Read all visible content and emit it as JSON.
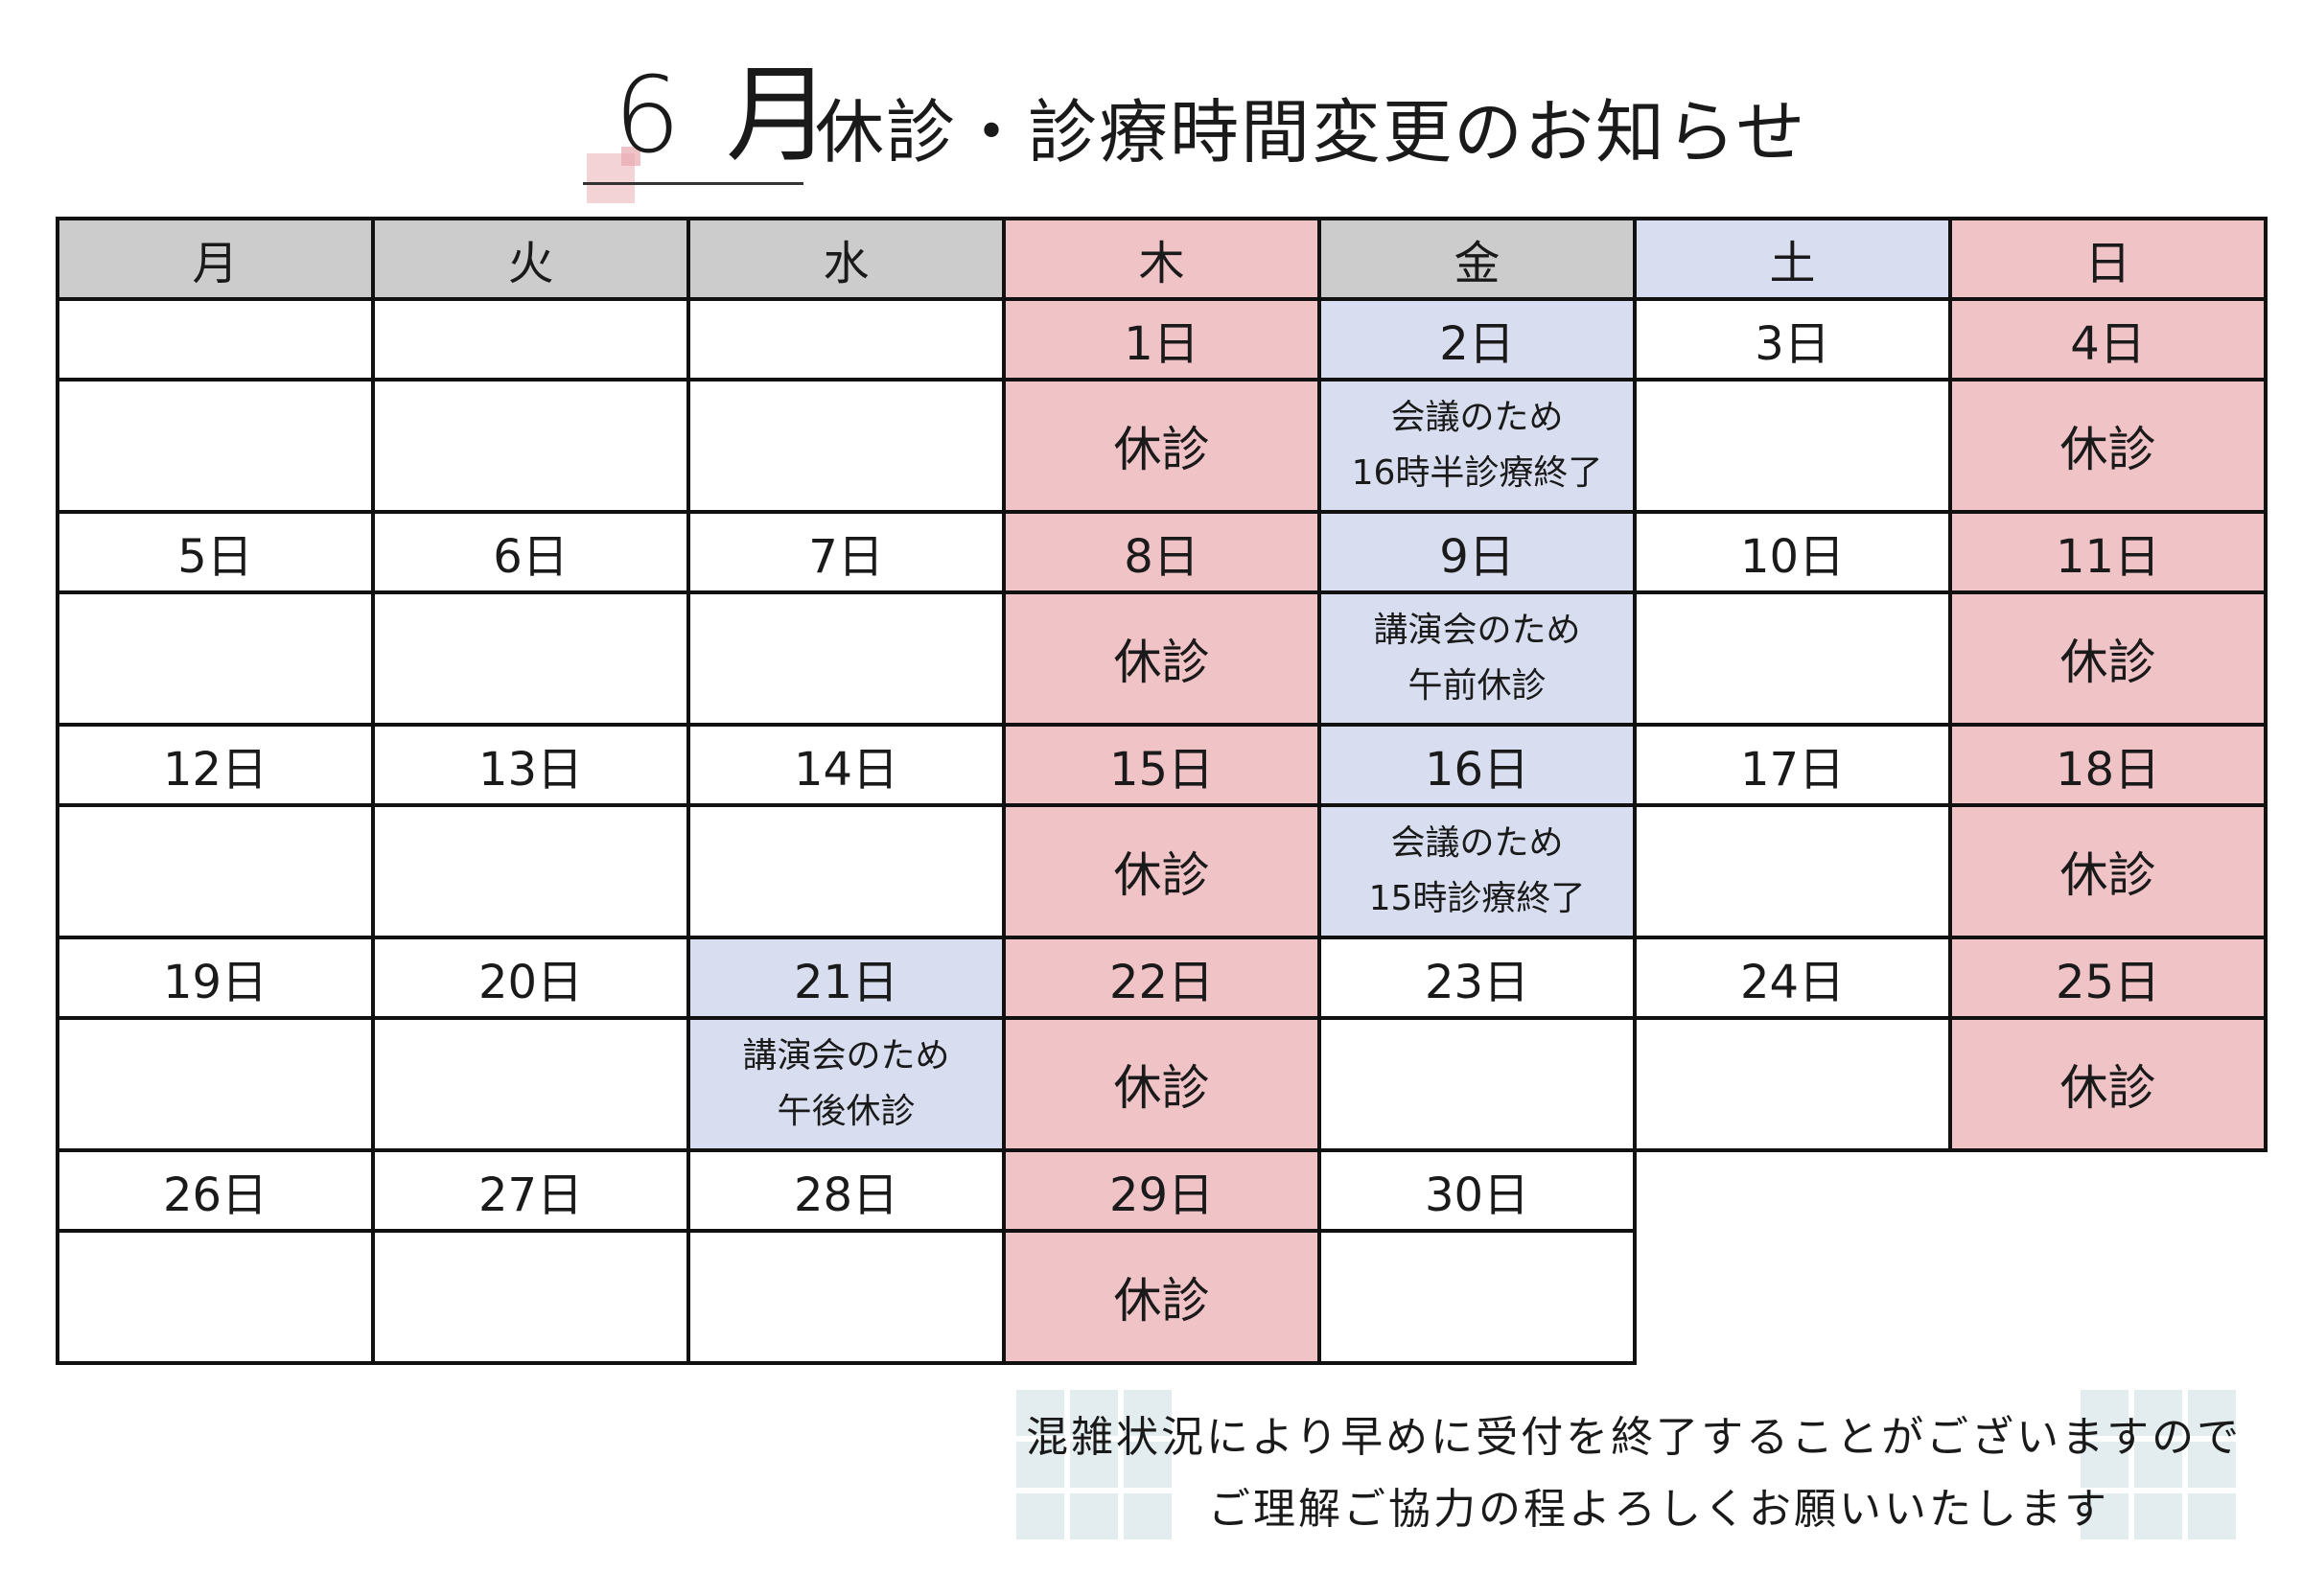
{
  "header": {
    "month": "6 月",
    "title": "休診・診療時間変更のお知らせ"
  },
  "weekdays": [
    "月",
    "火",
    "水",
    "木",
    "金",
    "土",
    "日"
  ],
  "weeks": [
    {
      "dates": [
        "",
        "",
        "",
        "1日",
        "2日",
        "3日",
        "4日"
      ],
      "notes": [
        "",
        "",
        "",
        "休診",
        "会議のため\n16時半診療終了",
        "",
        "休診"
      ]
    },
    {
      "dates": [
        "5日",
        "6日",
        "7日",
        "8日",
        "9日",
        "10日",
        "11日"
      ],
      "notes": [
        "",
        "",
        "",
        "休診",
        "講演会のため\n午前休診",
        "",
        "休診"
      ]
    },
    {
      "dates": [
        "12日",
        "13日",
        "14日",
        "15日",
        "16日",
        "17日",
        "18日"
      ],
      "notes": [
        "",
        "",
        "",
        "休診",
        "会議のため\n15時診療終了",
        "",
        "休診"
      ]
    },
    {
      "dates": [
        "19日",
        "20日",
        "21日",
        "22日",
        "23日",
        "24日",
        "25日"
      ],
      "notes": [
        "",
        "",
        "講演会のため\n午後休診",
        "休診",
        "",
        "",
        "休診"
      ]
    },
    {
      "dates": [
        "26日",
        "27日",
        "28日",
        "29日",
        "30日"
      ],
      "notes": [
        "",
        "",
        "",
        "休診",
        ""
      ]
    }
  ],
  "footer": {
    "line1": "混雑状況により早めに受付を終了することがございますので",
    "line2": "ご理解ご協力の程よろしくお願いいたします"
  },
  "colors": {
    "closed": "#f0c3c7",
    "changed": "#d8deef",
    "weekday_header": "#cccccc"
  }
}
